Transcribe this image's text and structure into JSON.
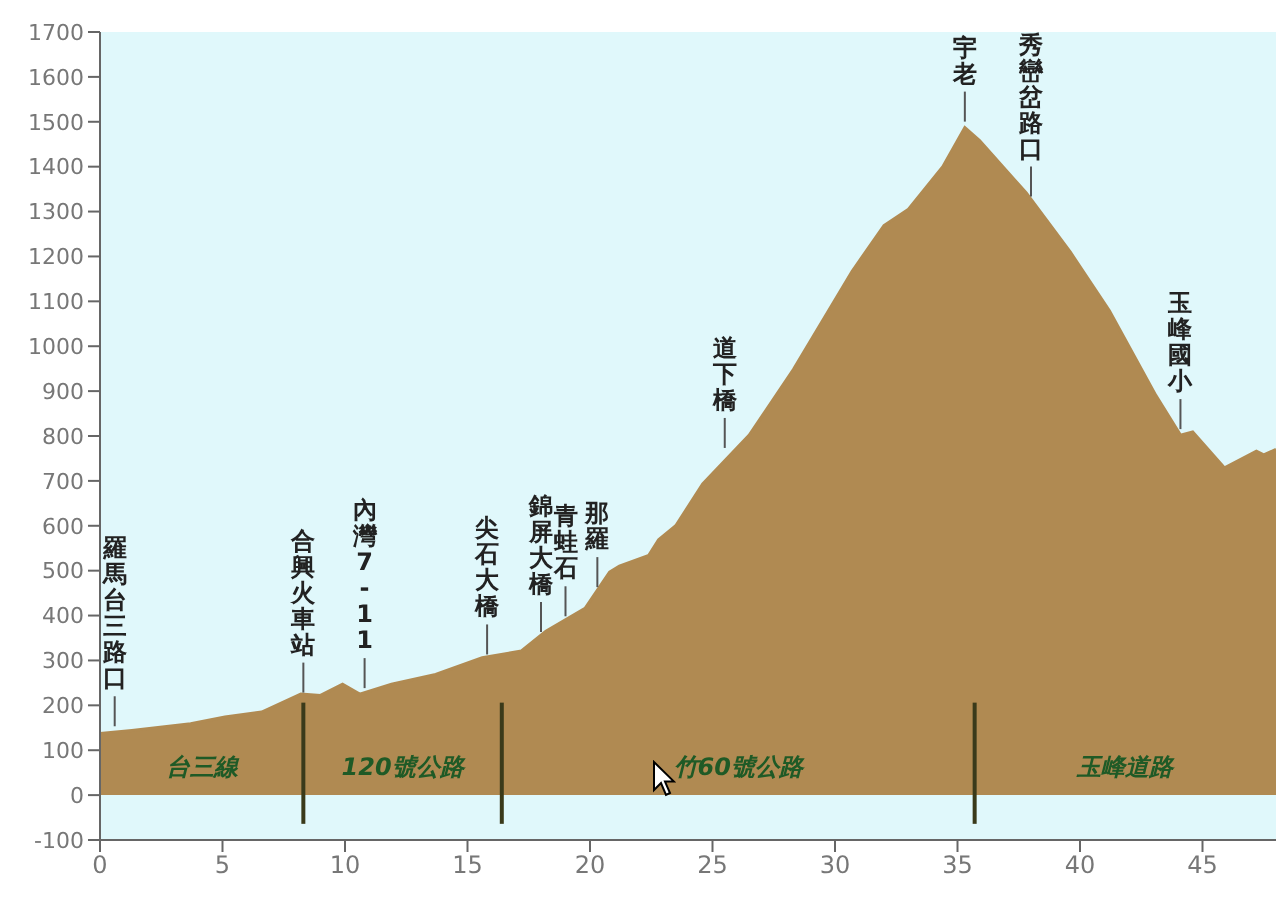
{
  "chart_data": {
    "type": "area",
    "x": [
      0,
      1.3,
      3.7,
      5.1,
      6.6,
      8.2,
      9.0,
      9.9,
      10.6,
      11.9,
      13.7,
      15.6,
      17.2,
      18.2,
      19.8,
      20.8,
      21.2,
      22.4,
      22.8,
      23.5,
      24.6,
      26.5,
      28.3,
      30.7,
      32.0,
      33.0,
      34.4,
      35.3,
      35.9,
      37.8,
      39.6,
      41.2,
      43.1,
      44.1,
      44.6,
      45.9,
      47.2,
      47.5,
      48
    ],
    "series": [
      {
        "color": "#b08a52",
        "values": [
          137,
          144,
          159,
          174,
          185,
          225,
          222,
          247,
          225,
          247,
          269,
          306,
          321,
          365,
          416,
          497,
          510,
          534,
          569,
          600,
          693,
          802,
          948,
          1167,
          1269,
          1305,
          1400,
          1487,
          1458,
          1342,
          1210,
          1079,
          890,
          802,
          809,
          729,
          766,
          758,
          770
        ]
      }
    ],
    "xlim": [
      0,
      48
    ],
    "xticks": [
      0,
      5,
      10,
      15,
      20,
      25,
      30,
      35,
      40,
      45
    ],
    "ylim": [
      -100,
      1700
    ],
    "yticks": [
      -100,
      0,
      100,
      200,
      300,
      400,
      500,
      600,
      700,
      800,
      900,
      1000,
      1100,
      1200,
      1300,
      1400,
      1500,
      1600,
      1700
    ],
    "annotations": [
      {
        "text": "羅馬台三路口",
        "x": 0.6,
        "y": 140
      },
      {
        "text": "合興火車站",
        "x": 8.3,
        "y": 215
      },
      {
        "text": "內灣7-11",
        "x": 10.8,
        "y": 225
      },
      {
        "text": "尖石大橋",
        "x": 15.8,
        "y": 300
      },
      {
        "text": "錦屏大橋",
        "x": 18.0,
        "y": 350
      },
      {
        "text": "青蛙石",
        "x": 19.0,
        "y": 385
      },
      {
        "text": "那羅",
        "x": 20.3,
        "y": 450
      },
      {
        "text": "道下橋",
        "x": 25.5,
        "y": 760
      },
      {
        "text": "宇老",
        "x": 35.3,
        "y": 1487
      },
      {
        "text": "秀巒岔路口",
        "x": 38.0,
        "y": 1320
      },
      {
        "text": "玉峰國小",
        "x": 44.1,
        "y": 802
      },
      "台三線",
      "120號公路",
      "竹60號公路",
      "玉峰道路"
    ],
    "ref_lines": [
      {
        "axis": "x",
        "value": 8.3,
        "color": "#3a3a1a"
      },
      {
        "axis": "x",
        "value": 16.4,
        "color": "#3a3a1a"
      },
      {
        "axis": "x",
        "value": 35.7,
        "color": "#3a3a1a"
      }
    ],
    "grid": false,
    "legend": false
  }
}
